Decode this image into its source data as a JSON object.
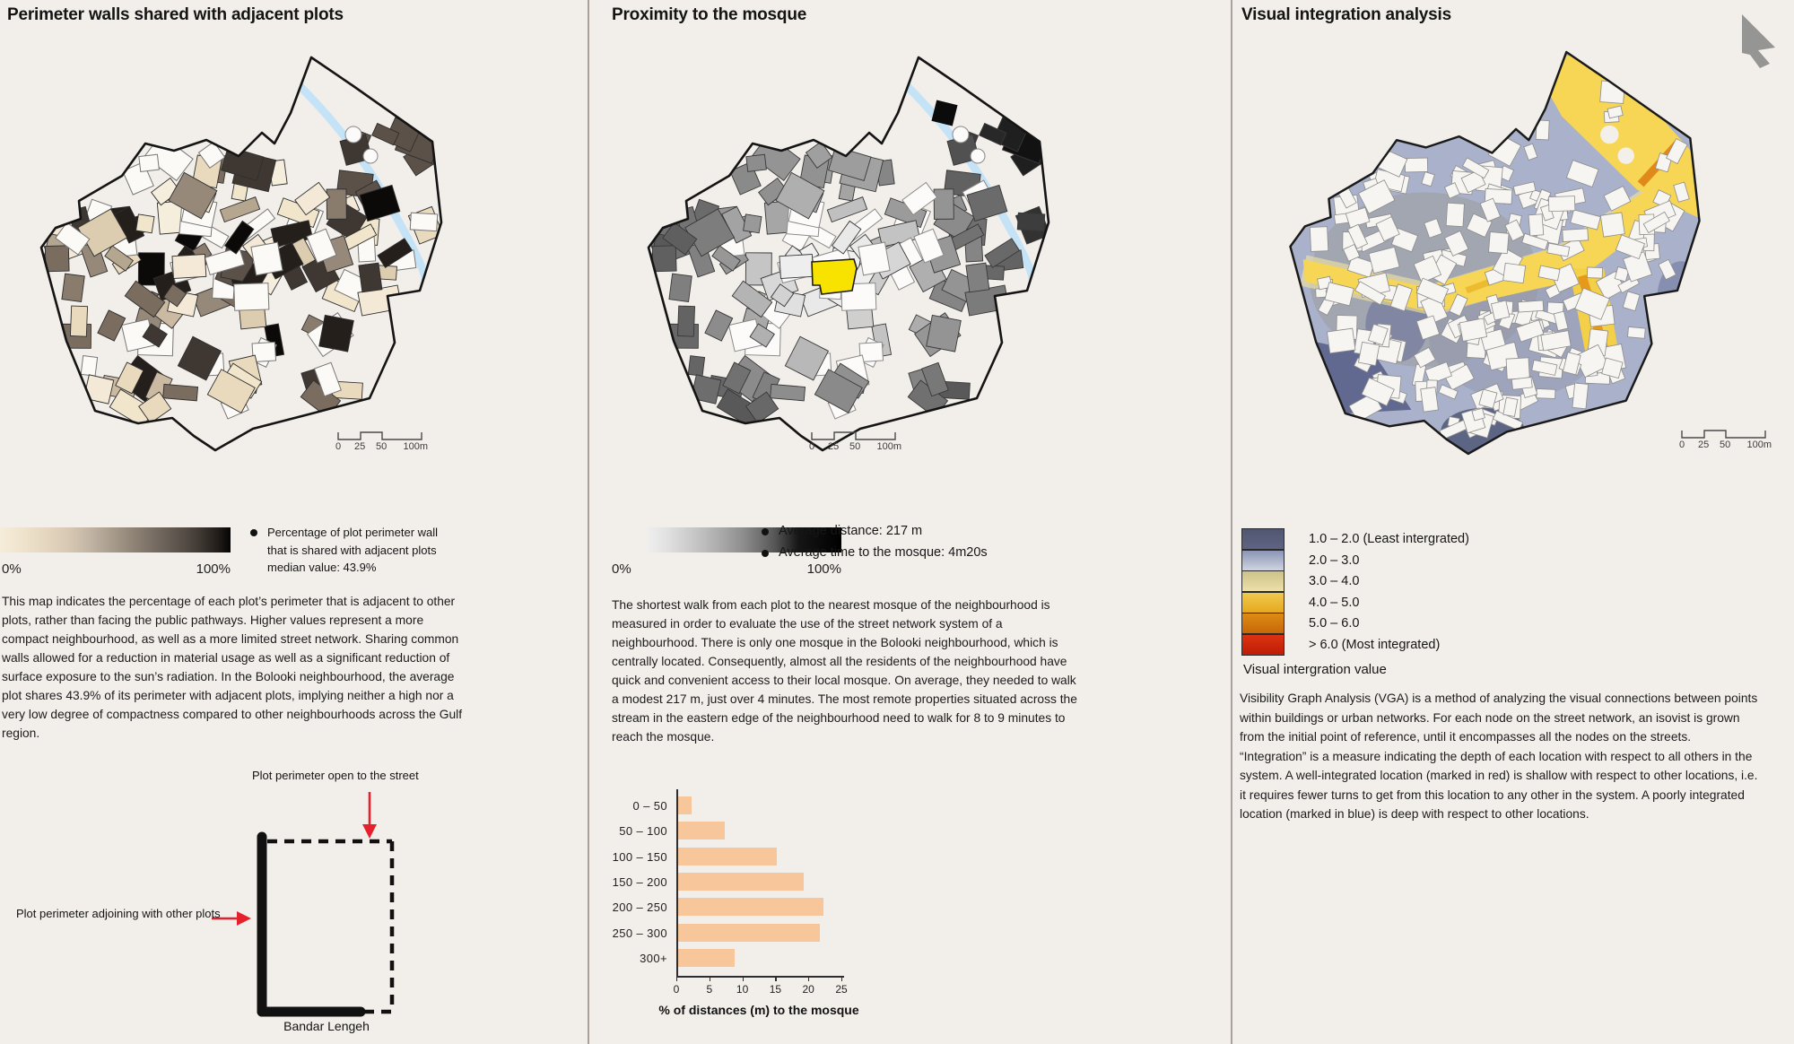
{
  "colors": {
    "background": "#f2eeea",
    "divider": "#aaa29a",
    "accent_red": "#e5212d",
    "stream_blue": "#c5e3f7",
    "mosque_yellow": "#f8e200",
    "bar_peach": "#f8c69b"
  },
  "scalebar": {
    "l0": "0",
    "l25": "25",
    "l50": "50",
    "l100": "100m"
  },
  "panels": {
    "perimeter": {
      "title": "Perimeter walls shared with adjacent plots",
      "legend_min": "0%",
      "legend_max": "100%",
      "legend_note": "Percentage of plot perimeter wall\nthat is shared with adjacent plots\nmedian value: 43.9%",
      "body": "This map indicates the percentage of each plot’s perimeter that is adjacent to other plots, rather than facing the public pathways. Higher values represent a more compact neighbourhood, as well as a more limited street network. Sharing common walls allowed for a reduction in material usage as well as a significant reduction of surface exposure to the sun’s radiation. In the Bolooki neighbourhood, the average plot shares 43.9% of its perimeter with adjacent plots, implying neither a high nor a very low degree of compactness compared to other neighbourhoods across the Gulf region.",
      "diagram": {
        "label_open": "Plot perimeter open to the street",
        "label_adjoining": "Plot perimeter adjoining with other plots",
        "caption": "Bandar Lengeh"
      }
    },
    "mosque": {
      "title": "Proximity to the mosque",
      "legend_min": "0%",
      "legend_max": "100%",
      "bullets": [
        "Average distance: 217 m",
        "Average time to the mosque: 4m20s"
      ],
      "body": "The shortest walk from each plot to the nearest mosque of the neighbourhood is measured in order to evaluate the use of the street network system of a neighbourhood. There is only one mosque in the Bolooki neighbourhood, which is centrally located. Consequently, almost all the residents of the neighbourhood have quick and convenient access to their local mosque. On average, they needed to walk a modest 217 m, just over 4 minutes. The most remote properties situated across the stream in the eastern edge of the neighbourhood need to walk for 8 to 9 minutes to reach the mosque."
    },
    "vga": {
      "title": "Visual integration analysis",
      "legend_items": [
        {
          "label": "1.0 – 2.0 (Least intergrated)",
          "c1": "#515670",
          "c2": "#5e6482"
        },
        {
          "label": "2.0 – 3.0",
          "c1": "#8b95b4",
          "c2": "#d0d5e2"
        },
        {
          "label": "3.0 – 4.0",
          "c1": "#cbc28a",
          "c2": "#ede0a8"
        },
        {
          "label": "4.0 – 5.0",
          "c1": "#f0c94e",
          "c2": "#e6a81f"
        },
        {
          "label": "5.0 – 6.0",
          "c1": "#dd8c15",
          "c2": "#c66708"
        },
        {
          "label": "> 6.0 (Most integrated)",
          "c1": "#dd3212",
          "c2": "#bd1d06"
        }
      ],
      "legend_caption": "Visual intergration value",
      "body": "Visibility Graph Analysis (VGA) is a method of analyzing the visual connections between points within buildings or urban networks. For each node on the street network, an isovist is grown from the initial point of reference, until it encompasses all the nodes on the streets. “Integration” is a measure indicating the depth of each location with respect to all others in the system. A well-integrated location (marked in red) is shallow with respect to other locations, i.e. it requires fewer turns to get from this location to any other in the system. A poorly integrated location (marked in blue) is deep with respect to other locations."
    }
  },
  "chart_data": {
    "type": "bar",
    "orientation": "horizontal",
    "categories": [
      "0 – 50",
      "50 – 100",
      "100 – 150",
      "150 – 200",
      "200 – 250",
      "250 – 300",
      "300+"
    ],
    "values": [
      2,
      7,
      15,
      19,
      22,
      21.5,
      8.5
    ],
    "xlabel": "% of distances (m) to the mosque",
    "xticks": [
      0,
      5,
      10,
      15,
      20,
      25
    ],
    "xlim": [
      0,
      25
    ],
    "grid": false,
    "bar_color": "#f8c69b"
  },
  "map_palettes": {
    "perimeter_plots": [
      "#f6eedd",
      "#f1e5cc",
      "#e9dabd",
      "#ddcdb0",
      "#cbbaa1",
      "#b5a68f",
      "#97897a",
      "#7a6d5f",
      "#5c5148",
      "#3f3832",
      "#241f1b",
      "#0c0a08",
      "#f3e9d6",
      "#8a7c6c"
    ],
    "vga_base": "#a9b2ca",
    "vga_street_yellow": "#f6d654",
    "vga_street_orange": "#e0891a",
    "vga_building": "#f7f5f1"
  }
}
